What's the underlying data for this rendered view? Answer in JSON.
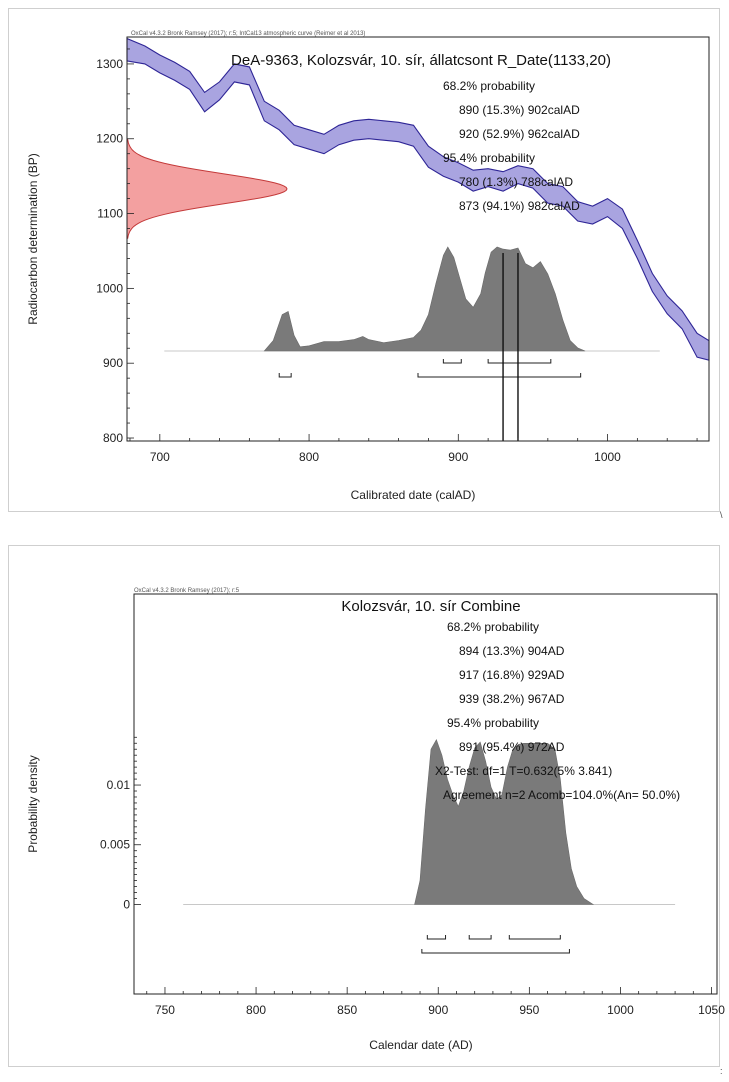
{
  "chart_data": [
    {
      "type": "area",
      "header": "OxCal v4.3.2 Bronk Ramsey (2017); r:5; IntCal13 atmospheric curve (Reimer et al 2013)",
      "title": "DeA-9363, Kolozsvár, 10. sír, állatcsont R_Date(1133,20)",
      "xlabel": "Calibrated date (calAD)",
      "ylabel": "Radiocarbon determination (BP)",
      "xlim": [
        678,
        1068
      ],
      "ylim": [
        796,
        1336
      ],
      "xticks": [
        700,
        800,
        900,
        1000
      ],
      "yticks": [
        800,
        900,
        1000,
        1100,
        1200,
        1300
      ],
      "annotations": [
        "68.2% probability",
        "890 (15.3%) 902calAD",
        "920 (52.9%) 962calAD",
        "95.4% probability",
        "780 (1.3%) 788calAD",
        "873 (94.1%) 982calAD"
      ],
      "calibration_curve": {
        "x": [
          678,
          690,
          700,
          710,
          720,
          730,
          740,
          750,
          760,
          770,
          780,
          790,
          800,
          810,
          820,
          830,
          840,
          850,
          860,
          870,
          880,
          890,
          900,
          910,
          920,
          930,
          940,
          950,
          960,
          970,
          980,
          990,
          1000,
          1010,
          1020,
          1030,
          1040,
          1050,
          1060,
          1068
        ],
        "upper": [
          1334,
          1324,
          1312,
          1302,
          1290,
          1262,
          1276,
          1300,
          1296,
          1250,
          1238,
          1218,
          1212,
          1206,
          1218,
          1224,
          1226,
          1224,
          1222,
          1218,
          1190,
          1176,
          1168,
          1158,
          1160,
          1156,
          1164,
          1160,
          1140,
          1136,
          1116,
          1110,
          1120,
          1106,
          1064,
          1020,
          990,
          970,
          940,
          930
        ],
        "lower": [
          1304,
          1300,
          1288,
          1278,
          1266,
          1236,
          1252,
          1276,
          1272,
          1224,
          1212,
          1192,
          1186,
          1180,
          1192,
          1198,
          1200,
          1198,
          1196,
          1190,
          1162,
          1150,
          1142,
          1130,
          1136,
          1130,
          1140,
          1134,
          1114,
          1110,
          1090,
          1086,
          1096,
          1080,
          1040,
          996,
          966,
          946,
          908,
          904
        ]
      },
      "radiocarbon_date": {
        "mean": 1133,
        "sd": 20
      },
      "posterior": {
        "x": [
          770,
          776,
          782,
          786,
          790,
          794,
          800,
          810,
          820,
          830,
          836,
          840,
          850,
          860,
          870,
          875,
          880,
          885,
          890,
          893,
          897,
          901,
          905,
          910,
          915,
          918,
          922,
          926,
          930,
          935,
          940,
          945,
          950,
          955,
          960,
          965,
          970,
          975,
          980,
          985
        ],
        "y": [
          0.0,
          0.1,
          0.35,
          0.38,
          0.15,
          0.04,
          0.05,
          0.09,
          0.09,
          0.11,
          0.14,
          0.11,
          0.08,
          0.1,
          0.13,
          0.2,
          0.35,
          0.65,
          0.92,
          1.0,
          0.9,
          0.7,
          0.5,
          0.42,
          0.55,
          0.75,
          0.95,
          1.0,
          0.98,
          0.97,
          0.99,
          0.84,
          0.8,
          0.86,
          0.74,
          0.55,
          0.3,
          0.1,
          0.03,
          0.0
        ]
      },
      "ranges_68": [
        [
          890,
          902
        ],
        [
          920,
          962
        ]
      ],
      "ranges_95": [
        [
          780,
          788
        ],
        [
          873,
          982
        ]
      ],
      "vertical_lines": [
        930,
        940
      ]
    },
    {
      "type": "area",
      "header": "OxCal v4.3.2 Bronk Ramsey (2017); r:5",
      "title": "Kolozsvár, 10. sír Combine",
      "xlabel": "Calendar date (AD)",
      "ylabel": "Probability density",
      "xlim": [
        733,
        1053
      ],
      "ylim": [
        -0.0075,
        0.026
      ],
      "xticks": [
        750,
        800,
        850,
        900,
        950,
        1000,
        1050
      ],
      "yticks": [
        0,
        0.005,
        0.01
      ],
      "ytick_labels": [
        "0",
        "0.005",
        "0.01"
      ],
      "annotations": [
        "68.2% probability",
        "894 (13.3%) 904AD",
        "917 (16.8%) 929AD",
        "939 (38.2%) 967AD",
        "95.4% probability",
        "891 (95.4%) 972AD",
        "X2-Test: df=1 T=0.632(5% 3.841)",
        "Agreement n=2 Acomb=104.0%(An= 50.0%)"
      ],
      "density": {
        "x": [
          887,
          890,
          893,
          896,
          899,
          902,
          905,
          908,
          911,
          914,
          917,
          920,
          923,
          926,
          929,
          932,
          935,
          938,
          941,
          944,
          947,
          950,
          955,
          960,
          964,
          967,
          970,
          973,
          976,
          980,
          985
        ],
        "y": [
          0.0,
          0.002,
          0.008,
          0.013,
          0.0138,
          0.0125,
          0.0105,
          0.0092,
          0.0082,
          0.0095,
          0.0115,
          0.0131,
          0.0136,
          0.012,
          0.0098,
          0.0088,
          0.0092,
          0.0115,
          0.013,
          0.0134,
          0.0135,
          0.0135,
          0.0135,
          0.0135,
          0.013,
          0.0105,
          0.006,
          0.003,
          0.0015,
          0.0005,
          0.0
        ]
      },
      "ranges_68": [
        [
          894,
          904
        ],
        [
          917,
          929
        ],
        [
          939,
          967
        ]
      ],
      "ranges_95": [
        [
          891,
          972
        ]
      ]
    }
  ],
  "side_marks": [
    "\\",
    ":"
  ]
}
